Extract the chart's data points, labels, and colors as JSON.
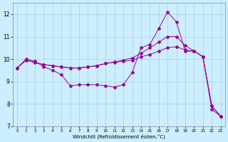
{
  "xlabel": "Windchill (Refroidissement éolien,°C)",
  "xlim": [
    -0.5,
    23.5
  ],
  "ylim": [
    7,
    12.5
  ],
  "yticks": [
    7,
    8,
    9,
    10,
    11,
    12
  ],
  "xticks": [
    0,
    1,
    2,
    3,
    4,
    5,
    6,
    7,
    8,
    9,
    10,
    11,
    12,
    13,
    14,
    15,
    16,
    17,
    18,
    19,
    20,
    21,
    22,
    23
  ],
  "background_color": "#cceeff",
  "grid_color": "#aaccdd",
  "line_color": "#990099",
  "line1_x": [
    0,
    1,
    2,
    3,
    4,
    5,
    6,
    7,
    8,
    9,
    10,
    11,
    12,
    13,
    14,
    15,
    16,
    17,
    18,
    19,
    20,
    21,
    22,
    23
  ],
  "line1_y": [
    9.6,
    10.0,
    9.9,
    9.65,
    9.5,
    9.3,
    8.8,
    8.85,
    8.85,
    8.85,
    8.8,
    8.75,
    8.85,
    9.4,
    10.5,
    10.65,
    11.35,
    12.1,
    11.65,
    10.35,
    10.35,
    10.1,
    7.75,
    7.45
  ],
  "line2_x": [
    0,
    1,
    2,
    3,
    4,
    5,
    6,
    7,
    8,
    9,
    10,
    11,
    12,
    13,
    14,
    15,
    16,
    17,
    18,
    19,
    20,
    21,
    22,
    23
  ],
  "line2_y": [
    9.6,
    9.95,
    9.85,
    9.75,
    9.7,
    9.65,
    9.6,
    9.6,
    9.65,
    9.7,
    9.8,
    9.85,
    9.9,
    9.95,
    10.1,
    10.2,
    10.35,
    10.5,
    10.55,
    10.4,
    10.35,
    10.1,
    7.9,
    7.45
  ],
  "line3_x": [
    0,
    1,
    2,
    3,
    4,
    5,
    6,
    7,
    8,
    9,
    10,
    11,
    12,
    13,
    14,
    15,
    16,
    17,
    18,
    19,
    20,
    21,
    22,
    23
  ],
  "line3_y": [
    9.6,
    9.95,
    9.85,
    9.75,
    9.7,
    9.65,
    9.6,
    9.6,
    9.65,
    9.7,
    9.8,
    9.87,
    9.95,
    10.05,
    10.25,
    10.5,
    10.75,
    11.0,
    11.0,
    10.6,
    10.35,
    10.1,
    7.9,
    7.45
  ]
}
